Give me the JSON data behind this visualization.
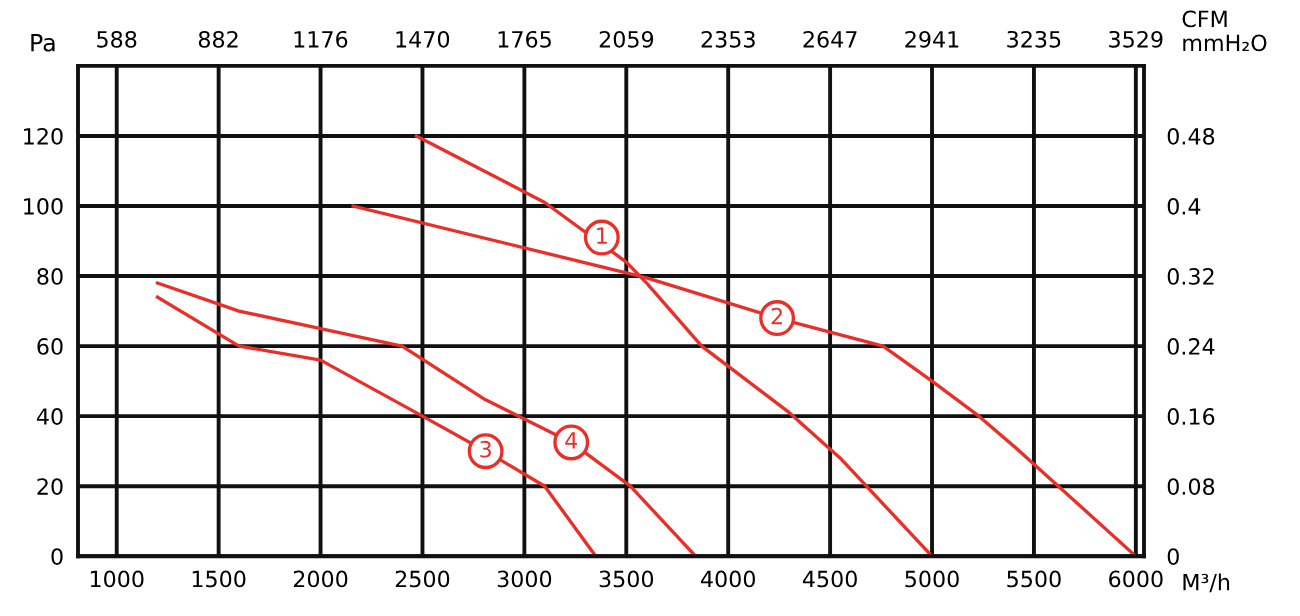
{
  "chart_data": {
    "type": "line",
    "xlabel": "M³/h",
    "ylabel": "Pa",
    "x2label": "CFM",
    "y2label": "mmH₂O",
    "xlim": [
      810,
      6040
    ],
    "xticks": [
      1000,
      1500,
      2000,
      2500,
      3000,
      3500,
      4000,
      4500,
      5000,
      5500,
      6000
    ],
    "x2lim": [
      476.4,
      3552.7
    ],
    "x2ticks": [
      588,
      882,
      1176,
      1470,
      1765,
      2059,
      2353,
      2647,
      2941,
      3235,
      3529
    ],
    "ylim": [
      0,
      140
    ],
    "yticks": [
      0,
      20,
      40,
      60,
      80,
      100,
      120
    ],
    "y2lim": [
      0,
      0.56
    ],
    "y2ticks": [
      0,
      0.08,
      0.16,
      0.24,
      0.32,
      0.4,
      0.48
    ],
    "grid": true,
    "legend": false,
    "marker": "none",
    "line_style": "solid",
    "series": [
      {
        "color": "#e8302a",
        "x": [
          2470,
          3100,
          3500,
          3600,
          3870,
          4300,
          4550,
          5000
        ],
        "values": [
          120,
          101,
          84,
          78,
          60,
          41,
          28,
          0
        ]
      },
      {
        "color": "#e8302a",
        "x": [
          2160,
          3600,
          4240,
          4760,
          5000,
          5230,
          5420,
          6000
        ],
        "values": [
          100,
          79.5,
          68,
          60,
          50,
          40,
          30.5,
          0
        ]
      },
      {
        "color": "#e8302a",
        "x": [
          1200,
          1600,
          2000,
          2500,
          2810,
          3100,
          3350
        ],
        "values": [
          74,
          60,
          56,
          40,
          30,
          20,
          0
        ]
      },
      {
        "color": "#e8302a",
        "x": [
          1200,
          1600,
          2000,
          2400,
          2800,
          3230,
          3520,
          3840
        ],
        "values": [
          78,
          70,
          65,
          60,
          45,
          32.5,
          20,
          0
        ]
      }
    ],
    "annotations": [
      {
        "text": "1",
        "x": 3380,
        "y": 91
      },
      {
        "text": "2",
        "x": 4240,
        "y": 68
      },
      {
        "text": "3",
        "x": 2810,
        "y": 30
      },
      {
        "text": "4",
        "x": 3230,
        "y": 32.5
      }
    ]
  }
}
